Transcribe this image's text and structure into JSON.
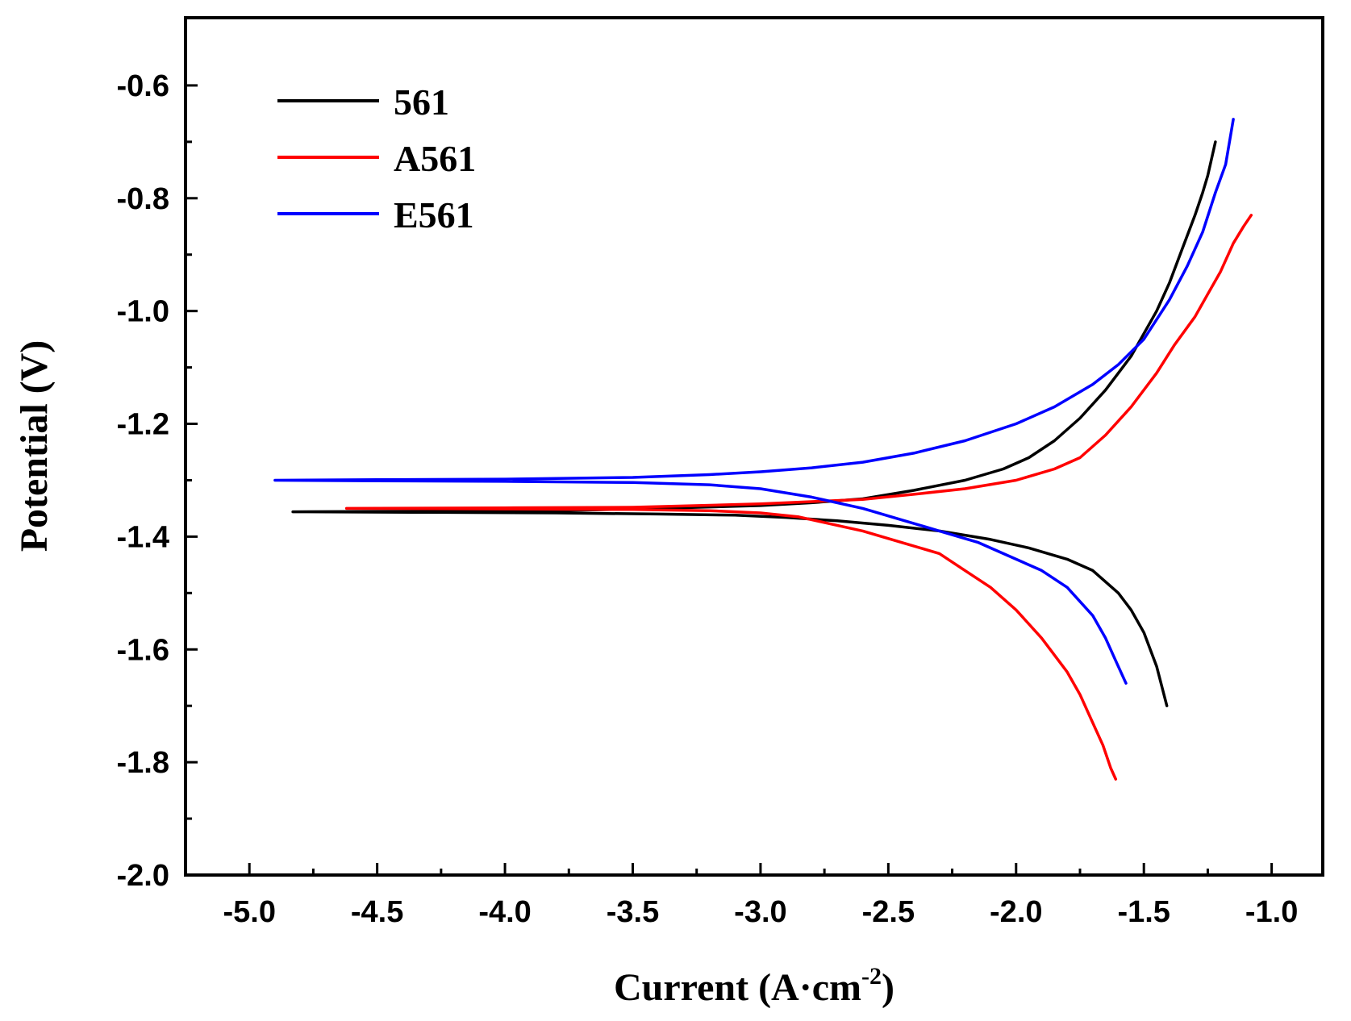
{
  "chart_data": {
    "type": "line",
    "title": "",
    "xlabel": "Current (A·cm",
    "xlabel_superscript": "-2",
    "xlabel_close": ")",
    "ylabel": "Potential (V)",
    "xlim": [
      -5.25,
      -0.8
    ],
    "ylim": [
      -2.0,
      -0.48
    ],
    "xticks": [
      -5.0,
      -4.5,
      -4.0,
      -3.5,
      -3.0,
      -2.5,
      -2.0,
      -1.5,
      -1.0
    ],
    "xtick_labels": [
      "-5.0",
      "-4.5",
      "-4.0",
      "-3.5",
      "-3.0",
      "-2.5",
      "-2.0",
      "-1.5",
      "-1.0"
    ],
    "yticks": [
      -2.0,
      -1.8,
      -1.6,
      -1.4,
      -1.2,
      -1.0,
      -0.8,
      -0.6
    ],
    "ytick_labels": [
      "-2.0",
      "-1.8",
      "-1.6",
      "-1.4",
      "-1.2",
      "-1.0",
      "-0.8",
      "-0.6"
    ],
    "legend_position": "top-left",
    "series": [
      {
        "name": "561",
        "color": "#000000",
        "points": [
          [
            -1.41,
            -1.7
          ],
          [
            -1.45,
            -1.63
          ],
          [
            -1.5,
            -1.57
          ],
          [
            -1.55,
            -1.53
          ],
          [
            -1.6,
            -1.5
          ],
          [
            -1.7,
            -1.46
          ],
          [
            -1.8,
            -1.44
          ],
          [
            -1.95,
            -1.42
          ],
          [
            -2.1,
            -1.405
          ],
          [
            -2.3,
            -1.39
          ],
          [
            -2.5,
            -1.38
          ],
          [
            -2.7,
            -1.372
          ],
          [
            -2.9,
            -1.366
          ],
          [
            -3.1,
            -1.362
          ],
          [
            -3.4,
            -1.36
          ],
          [
            -3.8,
            -1.358
          ],
          [
            -4.3,
            -1.357
          ],
          [
            -4.83,
            -1.356
          ],
          [
            -4.3,
            -1.355
          ],
          [
            -3.8,
            -1.354
          ],
          [
            -3.4,
            -1.35
          ],
          [
            -3.0,
            -1.345
          ],
          [
            -2.8,
            -1.34
          ],
          [
            -2.6,
            -1.333
          ],
          [
            -2.4,
            -1.318
          ],
          [
            -2.2,
            -1.3
          ],
          [
            -2.05,
            -1.28
          ],
          [
            -1.95,
            -1.26
          ],
          [
            -1.85,
            -1.23
          ],
          [
            -1.75,
            -1.19
          ],
          [
            -1.65,
            -1.14
          ],
          [
            -1.55,
            -1.08
          ],
          [
            -1.45,
            -1.0
          ],
          [
            -1.4,
            -0.95
          ],
          [
            -1.35,
            -0.89
          ],
          [
            -1.3,
            -0.83
          ],
          [
            -1.27,
            -0.79
          ],
          [
            -1.25,
            -0.76
          ],
          [
            -1.22,
            -0.7
          ]
        ]
      },
      {
        "name": "A561",
        "color": "#ff0000",
        "points": [
          [
            -1.61,
            -1.83
          ],
          [
            -1.63,
            -1.81
          ],
          [
            -1.66,
            -1.77
          ],
          [
            -1.7,
            -1.73
          ],
          [
            -1.75,
            -1.68
          ],
          [
            -1.8,
            -1.64
          ],
          [
            -1.9,
            -1.58
          ],
          [
            -2.0,
            -1.53
          ],
          [
            -2.1,
            -1.49
          ],
          [
            -2.2,
            -1.46
          ],
          [
            -2.3,
            -1.43
          ],
          [
            -2.45,
            -1.41
          ],
          [
            -2.6,
            -1.39
          ],
          [
            -2.75,
            -1.375
          ],
          [
            -2.85,
            -1.365
          ],
          [
            -3.0,
            -1.358
          ],
          [
            -3.2,
            -1.354
          ],
          [
            -3.5,
            -1.352
          ],
          [
            -4.0,
            -1.351
          ],
          [
            -4.62,
            -1.35
          ],
          [
            -4.0,
            -1.349
          ],
          [
            -3.5,
            -1.348
          ],
          [
            -3.0,
            -1.342
          ],
          [
            -2.8,
            -1.338
          ],
          [
            -2.6,
            -1.334
          ],
          [
            -2.4,
            -1.325
          ],
          [
            -2.2,
            -1.315
          ],
          [
            -2.0,
            -1.3
          ],
          [
            -1.85,
            -1.28
          ],
          [
            -1.75,
            -1.26
          ],
          [
            -1.65,
            -1.22
          ],
          [
            -1.55,
            -1.17
          ],
          [
            -1.45,
            -1.11
          ],
          [
            -1.38,
            -1.06
          ],
          [
            -1.3,
            -1.01
          ],
          [
            -1.25,
            -0.97
          ],
          [
            -1.2,
            -0.93
          ],
          [
            -1.15,
            -0.88
          ],
          [
            -1.11,
            -0.85
          ],
          [
            -1.08,
            -0.83
          ]
        ]
      },
      {
        "name": "E561",
        "color": "#0000ff",
        "points": [
          [
            -1.57,
            -1.66
          ],
          [
            -1.61,
            -1.62
          ],
          [
            -1.65,
            -1.58
          ],
          [
            -1.7,
            -1.54
          ],
          [
            -1.8,
            -1.49
          ],
          [
            -1.9,
            -1.46
          ],
          [
            -2.0,
            -1.44
          ],
          [
            -2.15,
            -1.41
          ],
          [
            -2.3,
            -1.39
          ],
          [
            -2.45,
            -1.37
          ],
          [
            -2.6,
            -1.35
          ],
          [
            -2.8,
            -1.33
          ],
          [
            -3.0,
            -1.315
          ],
          [
            -3.2,
            -1.308
          ],
          [
            -3.5,
            -1.304
          ],
          [
            -4.0,
            -1.302
          ],
          [
            -4.5,
            -1.301
          ],
          [
            -4.9,
            -1.3
          ],
          [
            -4.5,
            -1.299
          ],
          [
            -4.0,
            -1.298
          ],
          [
            -3.5,
            -1.295
          ],
          [
            -3.2,
            -1.29
          ],
          [
            -3.0,
            -1.285
          ],
          [
            -2.8,
            -1.278
          ],
          [
            -2.6,
            -1.268
          ],
          [
            -2.4,
            -1.252
          ],
          [
            -2.2,
            -1.23
          ],
          [
            -2.0,
            -1.2
          ],
          [
            -1.85,
            -1.17
          ],
          [
            -1.7,
            -1.13
          ],
          [
            -1.6,
            -1.095
          ],
          [
            -1.5,
            -1.05
          ],
          [
            -1.4,
            -0.98
          ],
          [
            -1.33,
            -0.92
          ],
          [
            -1.27,
            -0.86
          ],
          [
            -1.22,
            -0.79
          ],
          [
            -1.18,
            -0.74
          ],
          [
            -1.15,
            -0.66
          ]
        ]
      }
    ]
  }
}
